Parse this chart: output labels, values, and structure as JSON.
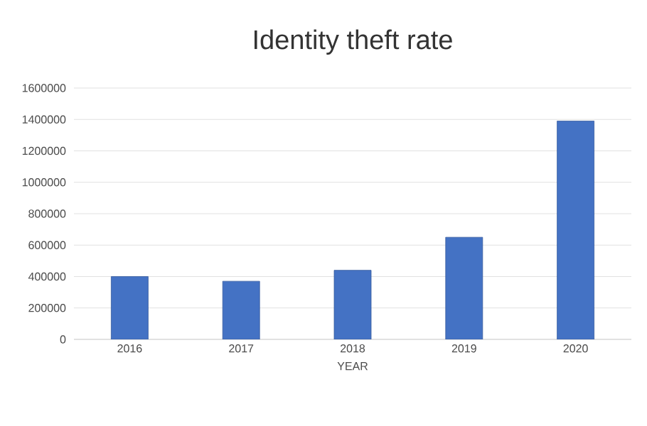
{
  "chart_data": {
    "type": "bar",
    "title": "Identity theft rate",
    "xlabel": "YEAR",
    "categories": [
      "2016",
      "2017",
      "2018",
      "2019",
      "2020"
    ],
    "values": [
      400000,
      370000,
      440000,
      650000,
      1390000
    ],
    "color": "#4472c4",
    "ylim": [
      0,
      1600000
    ],
    "yticks": [
      0,
      200000,
      400000,
      600000,
      800000,
      1000000,
      1200000,
      1400000,
      1600000
    ],
    "grid": "y"
  }
}
